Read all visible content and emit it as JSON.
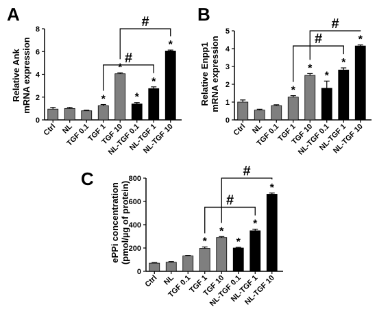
{
  "chart_data": [
    {
      "panel": "A",
      "type": "bar",
      "ylabel": [
        "Relative Ank",
        "mRNA expression"
      ],
      "ylim": [
        0,
        8
      ],
      "yticks": [
        0,
        2,
        4,
        6,
        8
      ],
      "categories": [
        "Ctrl",
        "NL",
        "TGF 0.1",
        "TGF 1",
        "TGF 10",
        "NL-TGF 0.1",
        "NL-TGF 1",
        "NL-TGF 10"
      ],
      "values": [
        0.95,
        1.0,
        0.8,
        1.25,
        4.05,
        1.4,
        2.75,
        6.05
      ],
      "errors": [
        0.15,
        0.1,
        0.05,
        0.1,
        0.08,
        0.12,
        0.15,
        0.08
      ],
      "bar_colors": [
        "#7f7f7f",
        "#7f7f7f",
        "#7f7f7f",
        "#7f7f7f",
        "#7f7f7f",
        "#000000",
        "#000000",
        "#000000"
      ],
      "significance": [
        "",
        "",
        "",
        "*",
        "*",
        "*",
        "*",
        "*"
      ],
      "brackets": [
        {
          "from": 3,
          "to": 6,
          "label": "#"
        },
        {
          "from": 4,
          "to": 7,
          "label": "#"
        }
      ]
    },
    {
      "panel": "B",
      "type": "bar",
      "ylabel": [
        "Relative Enpp1",
        "mRNA expression"
      ],
      "ylim": [
        0,
        5
      ],
      "yticks": [
        0,
        1,
        2,
        3,
        4,
        5
      ],
      "categories": [
        "Ctrl",
        "NL",
        "TGF 0.1",
        "TGF 1",
        "TGF 10",
        "NL-TGF 0.1",
        "NL-TGF 1",
        "NL-TGF 10"
      ],
      "values": [
        1.0,
        0.55,
        0.8,
        1.28,
        2.5,
        1.78,
        2.8,
        4.15
      ],
      "errors": [
        0.12,
        0.05,
        0.05,
        0.08,
        0.1,
        0.4,
        0.12,
        0.06
      ],
      "bar_colors": [
        "#7f7f7f",
        "#7f7f7f",
        "#7f7f7f",
        "#7f7f7f",
        "#7f7f7f",
        "#000000",
        "#000000",
        "#000000"
      ],
      "significance": [
        "",
        "",
        "",
        "*",
        "*",
        "*",
        "*",
        "*"
      ],
      "brackets": [
        {
          "from": 3,
          "to": 6,
          "label": "#"
        },
        {
          "from": 4,
          "to": 7,
          "label": "#"
        }
      ]
    },
    {
      "panel": "C",
      "type": "bar",
      "ylabel": [
        "ePPi concentration",
        "(pmol/µg of protein)"
      ],
      "ylim": [
        0,
        800
      ],
      "yticks": [
        0,
        200,
        400,
        600,
        800
      ],
      "categories": [
        "Ctrl",
        "NL",
        "TGF 0.1",
        "TGF 1",
        "TGF 10",
        "NL-TGF 0.1",
        "NL-TGF 1",
        "NL-TGF 10"
      ],
      "values": [
        70,
        78,
        132,
        197,
        290,
        200,
        348,
        662
      ],
      "errors": [
        5,
        6,
        5,
        12,
        8,
        6,
        14,
        10
      ],
      "bar_colors": [
        "#7f7f7f",
        "#7f7f7f",
        "#7f7f7f",
        "#7f7f7f",
        "#7f7f7f",
        "#000000",
        "#000000",
        "#000000"
      ],
      "significance": [
        "",
        "",
        "",
        "*",
        "*",
        "*",
        "*",
        "*"
      ],
      "brackets": [
        {
          "from": 3,
          "to": 6,
          "label": "#"
        },
        {
          "from": 4,
          "to": 7,
          "label": "#"
        }
      ]
    }
  ]
}
